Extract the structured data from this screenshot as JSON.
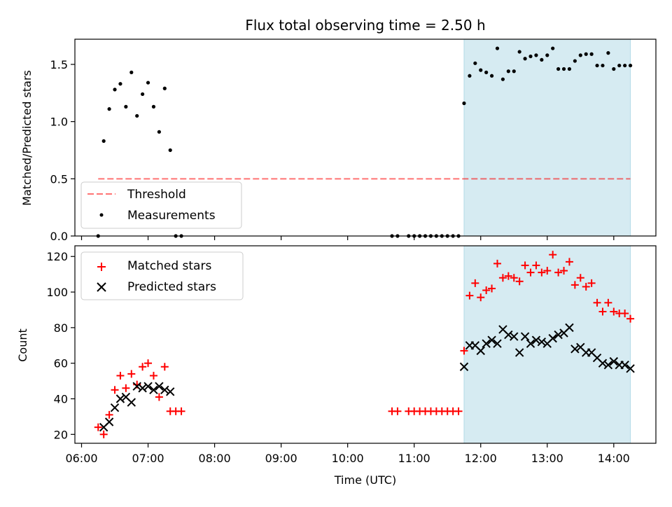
{
  "chart_data": [
    {
      "type": "scatter",
      "title": "Flux total observing time = 2.50 h",
      "xlabel": "",
      "ylabel": "Matched/Predicted stars",
      "ylim": [
        0,
        1.72
      ],
      "yticks": [
        "0.0",
        "0.5",
        "1.0",
        "1.5"
      ],
      "threshold": 0.5,
      "threshold_x": [
        "06:15",
        "14:15"
      ],
      "highlight": {
        "start": "11:45",
        "end": "14:15",
        "color": "#add8e6"
      },
      "legend": {
        "position": "lower-left",
        "entries": [
          "Threshold",
          "Measurements"
        ]
      },
      "series": [
        {
          "name": "Measurements",
          "color": "#000000",
          "x": [
            "06:15",
            "06:20",
            "06:25",
            "06:30",
            "06:35",
            "06:40",
            "06:45",
            "06:50",
            "06:55",
            "07:00",
            "07:05",
            "07:10",
            "07:15",
            "07:20",
            "07:25",
            "07:30",
            "10:40",
            "10:45",
            "10:55",
            "11:00",
            "11:05",
            "11:10",
            "11:15",
            "11:20",
            "11:25",
            "11:30",
            "11:35",
            "11:40",
            "11:45",
            "11:50",
            "11:55",
            "12:00",
            "12:05",
            "12:10",
            "12:15",
            "12:20",
            "12:25",
            "12:30",
            "12:35",
            "12:40",
            "12:45",
            "12:50",
            "12:55",
            "13:00",
            "13:05",
            "13:10",
            "13:15",
            "13:20",
            "13:25",
            "13:30",
            "13:35",
            "13:40",
            "13:45",
            "13:50",
            "13:55",
            "14:00",
            "14:05",
            "14:10",
            "14:15"
          ],
          "y": [
            0,
            0.83,
            1.11,
            1.28,
            1.33,
            1.13,
            1.43,
            1.05,
            1.24,
            1.34,
            1.13,
            0.91,
            1.29,
            0.75,
            0,
            0,
            0,
            0,
            0,
            0,
            0,
            0,
            0,
            0,
            0,
            0,
            0,
            0,
            1.16,
            1.4,
            1.51,
            1.45,
            1.43,
            1.4,
            1.64,
            1.37,
            1.44,
            1.44,
            1.61,
            1.55,
            1.57,
            1.58,
            1.54,
            1.58,
            1.64,
            1.46,
            1.46,
            1.46,
            1.53,
            1.58,
            1.59,
            1.59,
            1.49,
            1.49,
            1.6,
            1.46,
            1.49,
            1.49,
            1.49
          ]
        }
      ]
    },
    {
      "type": "scatter",
      "title": "",
      "xlabel": "Time (UTC)",
      "ylabel": "Count",
      "ylim": [
        15,
        126
      ],
      "yticks": [
        "20",
        "40",
        "60",
        "80",
        "100",
        "120"
      ],
      "xticks": [
        "06:00",
        "07:00",
        "08:00",
        "09:00",
        "10:00",
        "11:00",
        "12:00",
        "13:00",
        "14:00"
      ],
      "xlim": [
        "05:54",
        "14:38"
      ],
      "highlight": {
        "start": "11:45",
        "end": "14:15",
        "color": "#add8e6"
      },
      "legend": {
        "position": "upper-left",
        "entries": [
          "Matched stars",
          "Predicted stars"
        ]
      },
      "series": [
        {
          "name": "Matched stars",
          "marker": "plus",
          "color": "#ff0000",
          "x": [
            "06:15",
            "06:20",
            "06:25",
            "06:30",
            "06:35",
            "06:40",
            "06:45",
            "06:50",
            "06:55",
            "07:00",
            "07:05",
            "07:10",
            "07:15",
            "07:20",
            "07:25",
            "07:30",
            "10:40",
            "10:45",
            "10:55",
            "11:00",
            "11:05",
            "11:10",
            "11:15",
            "11:20",
            "11:25",
            "11:30",
            "11:35",
            "11:40",
            "11:45",
            "11:50",
            "11:55",
            "12:00",
            "12:05",
            "12:10",
            "12:15",
            "12:20",
            "12:25",
            "12:30",
            "12:35",
            "12:40",
            "12:45",
            "12:50",
            "12:55",
            "13:00",
            "13:05",
            "13:10",
            "13:15",
            "13:20",
            "13:25",
            "13:30",
            "13:35",
            "13:40",
            "13:45",
            "13:50",
            "13:55",
            "14:00",
            "14:05",
            "14:10",
            "14:15"
          ],
          "y": [
            24,
            20,
            31,
            45,
            53,
            46,
            54,
            48,
            58,
            60,
            53,
            41,
            58,
            33,
            33,
            33,
            33,
            33,
            33,
            33,
            33,
            33,
            33,
            33,
            33,
            33,
            33,
            33,
            67,
            98,
            105,
            97,
            101,
            102,
            116,
            108,
            109,
            108,
            106,
            115,
            111,
            115,
            111,
            112,
            121,
            111,
            112,
            117,
            104,
            108,
            103,
            105,
            94,
            89,
            94,
            89,
            88,
            88,
            85
          ]
        },
        {
          "name": "Predicted stars",
          "marker": "x",
          "color": "#000000",
          "x": [
            "06:20",
            "06:25",
            "06:30",
            "06:35",
            "06:40",
            "06:45",
            "06:50",
            "06:55",
            "07:00",
            "07:05",
            "07:10",
            "07:15",
            "07:20",
            "11:45",
            "11:50",
            "11:55",
            "12:00",
            "12:05",
            "12:10",
            "12:15",
            "12:20",
            "12:25",
            "12:30",
            "12:35",
            "12:40",
            "12:45",
            "12:50",
            "12:55",
            "13:00",
            "13:05",
            "13:10",
            "13:15",
            "13:20",
            "13:25",
            "13:30",
            "13:35",
            "13:40",
            "13:45",
            "13:50",
            "13:55",
            "14:00",
            "14:05",
            "14:10",
            "14:15"
          ],
          "y": [
            24,
            27,
            35,
            40,
            41,
            38,
            47,
            46,
            47,
            45,
            47,
            45,
            44,
            58,
            70,
            70,
            67,
            71,
            73,
            71,
            79,
            76,
            75,
            66,
            75,
            71,
            73,
            72,
            71,
            74,
            76,
            77,
            80,
            68,
            69,
            66,
            66,
            63,
            60,
            59,
            61,
            59,
            59,
            57
          ]
        }
      ]
    }
  ]
}
